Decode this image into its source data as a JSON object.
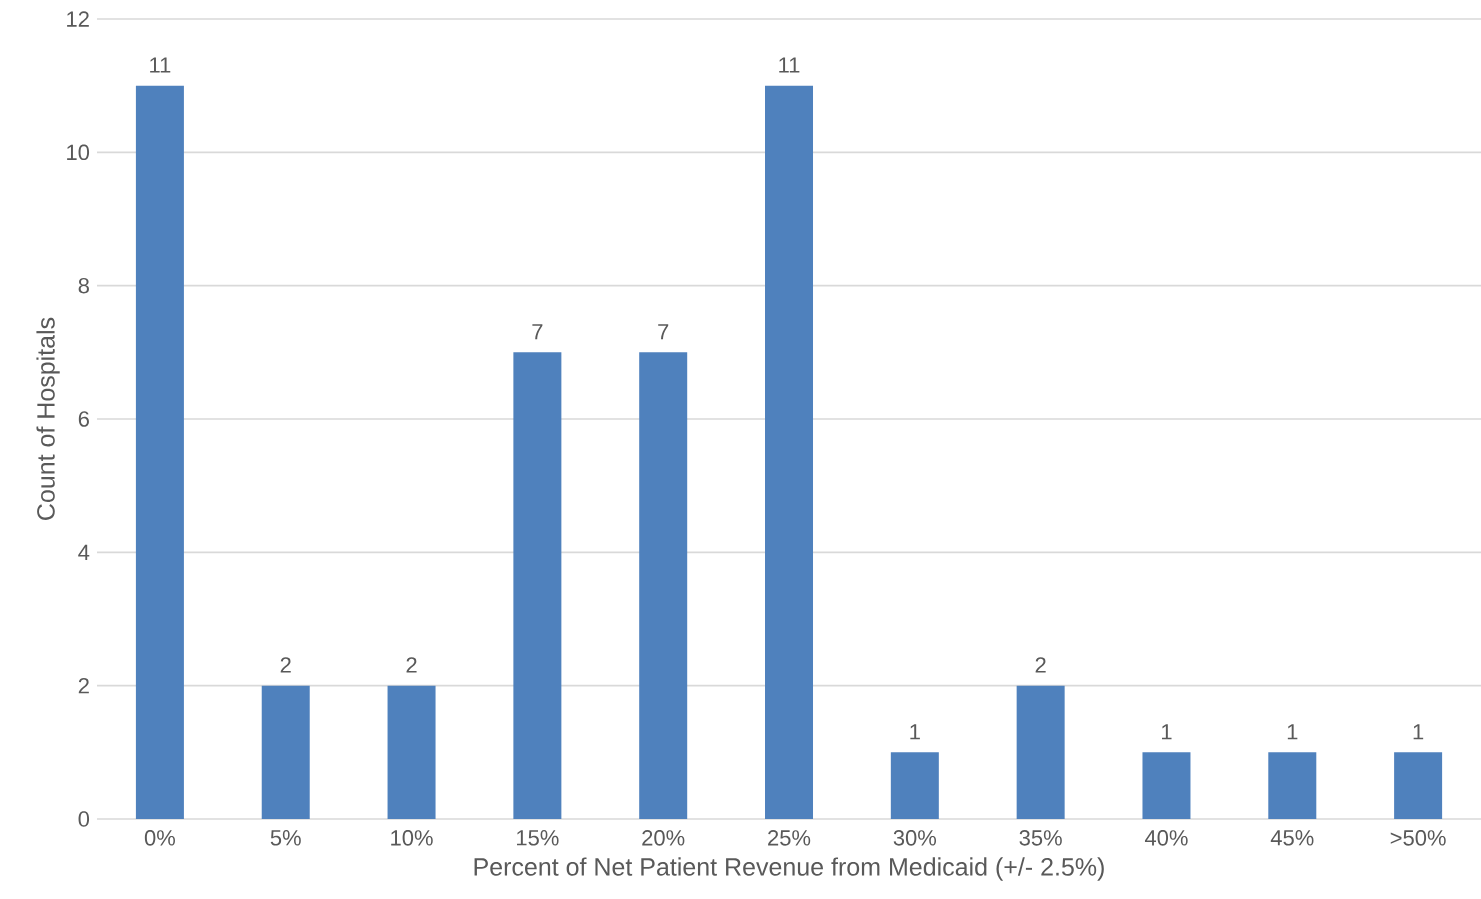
{
  "chart_data": {
    "type": "bar",
    "xlabel": "Percent of Net Patient Revenue from Medicaid (+/- 2.5%)",
    "ylabel": "Count of Hospitals",
    "categories": [
      "0%",
      "5%",
      "10%",
      "15%",
      "20%",
      "25%",
      "30%",
      "35%",
      "40%",
      "45%",
      ">50%"
    ],
    "values": [
      11,
      2,
      2,
      7,
      7,
      11,
      1,
      2,
      1,
      1,
      1
    ],
    "color": "#4f81bd",
    "ylim": [
      0,
      12
    ],
    "yticks": [
      0,
      2,
      4,
      6,
      8,
      10,
      12
    ],
    "grid": "y",
    "data_labels": true
  }
}
